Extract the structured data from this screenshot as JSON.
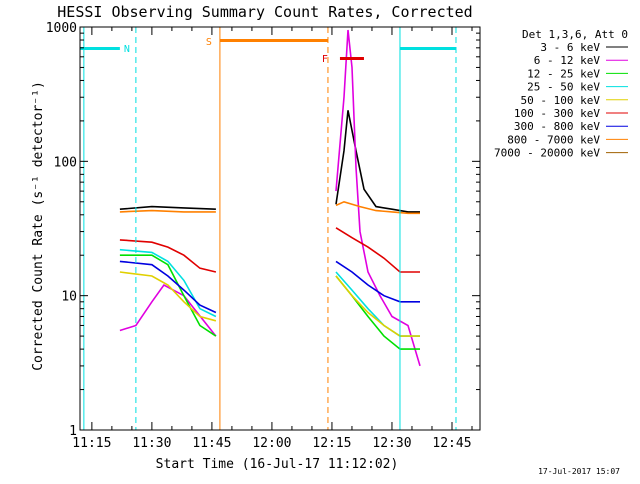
{
  "chart_data": {
    "type": "line",
    "title": "HESSI Observing Summary Count Rates, Corrected",
    "xlabel": "Start Time (16-Jul-17 11:12:02)",
    "ylabel": "Corrected Count Rate (s⁻¹ detector⁻¹)",
    "y_scale": "log",
    "ylim": [
      1,
      1000
    ],
    "xlim": [
      "11:12:02",
      "12:52:00"
    ],
    "x_ticks": [
      "11:15",
      "11:30",
      "11:45",
      "12:00",
      "12:15",
      "12:30",
      "12:45"
    ],
    "y_ticks": [
      "1",
      "10",
      "100",
      "1000"
    ],
    "legend_title": "Det 1,3,6, Att 0",
    "legend_position": "right",
    "timestamp": "17-Jul-2017 15:07",
    "series": [
      {
        "name": "3 - 6 keV",
        "color": "#000000",
        "x": [
          "11:22",
          "11:30",
          "11:38",
          "11:46",
          "12:16",
          "12:18",
          "12:19",
          "12:21",
          "12:23",
          "12:26",
          "12:30",
          "12:34",
          "12:37"
        ],
        "y": [
          44,
          46,
          45,
          44,
          48,
          120,
          240,
          120,
          62,
          46,
          44,
          42,
          42
        ]
      },
      {
        "name": "6 - 12 keV",
        "color": "#e000e0",
        "x": [
          "11:22",
          "11:26",
          "11:30",
          "11:33",
          "11:38",
          "11:46",
          "12:16",
          "12:18",
          "12:19",
          "12:20",
          "12:21",
          "12:22",
          "12:24",
          "12:27",
          "12:30",
          "12:34",
          "12:37"
        ],
        "y": [
          5.5,
          6,
          9,
          12,
          10,
          5,
          60,
          300,
          950,
          500,
          90,
          30,
          15,
          10,
          7,
          6,
          3
        ]
      },
      {
        "name": "12 - 25 keV",
        "color": "#00e000",
        "x": [
          "11:22",
          "11:30",
          "11:34",
          "11:38",
          "11:42",
          "11:46",
          "12:16",
          "12:20",
          "12:24",
          "12:28",
          "12:32",
          "12:37"
        ],
        "y": [
          20,
          20,
          17,
          10,
          6,
          5,
          14,
          10,
          7,
          5,
          4,
          4
        ]
      },
      {
        "name": "25 - 50 keV",
        "color": "#00e0e0",
        "x": [
          "11:22",
          "11:30",
          "11:34",
          "11:38",
          "11:42",
          "11:46",
          "12:16",
          "12:20",
          "12:24",
          "12:28",
          "12:32",
          "12:37"
        ],
        "y": [
          22,
          21,
          18,
          13,
          8,
          7,
          15,
          11,
          8,
          6,
          5,
          5
        ]
      },
      {
        "name": "50 - 100 keV",
        "color": "#e0d000",
        "x": [
          "11:22",
          "11:30",
          "11:34",
          "11:38",
          "11:42",
          "11:46",
          "12:16",
          "12:20",
          "12:24",
          "12:28",
          "12:32",
          "12:37"
        ],
        "y": [
          15,
          14,
          12,
          9,
          7,
          6.5,
          14,
          10,
          7.5,
          6,
          5,
          5
        ]
      },
      {
        "name": "100 - 300 keV",
        "color": "#e00000",
        "x": [
          "11:22",
          "11:30",
          "11:34",
          "11:38",
          "11:42",
          "11:46",
          "12:16",
          "12:20",
          "12:24",
          "12:28",
          "12:32",
          "12:37"
        ],
        "y": [
          26,
          25,
          23,
          20,
          16,
          15,
          32,
          27,
          23,
          19,
          15,
          15
        ]
      },
      {
        "name": "300 - 800 keV",
        "color": "#0000e0",
        "x": [
          "11:22",
          "11:30",
          "11:34",
          "11:38",
          "11:42",
          "11:46",
          "12:16",
          "12:20",
          "12:24",
          "12:28",
          "12:32",
          "12:37"
        ],
        "y": [
          18,
          17,
          14,
          11,
          8.5,
          7.5,
          18,
          15,
          12,
          10,
          9,
          9
        ]
      },
      {
        "name": "800 - 7000 keV",
        "color": "#ff8000",
        "x": [
          "11:22",
          "11:30",
          "11:38",
          "11:46",
          "12:16",
          "12:18",
          "12:22",
          "12:26",
          "12:30",
          "12:34",
          "12:37"
        ],
        "y": [
          42,
          43,
          42,
          42,
          47,
          50,
          46,
          43,
          42,
          41,
          41
        ]
      },
      {
        "name": "7000 - 20000 keV",
        "color": "#a06000",
        "x": [],
        "y": []
      }
    ],
    "annotations": [
      {
        "text": "N",
        "color": "#00e0e0"
      },
      {
        "text": "S",
        "color": "#ff8000"
      },
      {
        "text": "F",
        "color": "#e00000"
      }
    ]
  }
}
